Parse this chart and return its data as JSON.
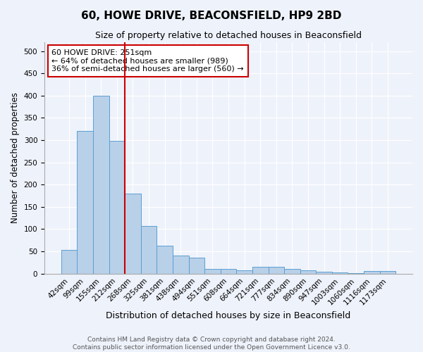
{
  "title": "60, HOWE DRIVE, BEACONSFIELD, HP9 2BD",
  "subtitle": "Size of property relative to detached houses in Beaconsfield",
  "xlabel": "Distribution of detached houses by size in Beaconsfield",
  "ylabel": "Number of detached properties",
  "categories": [
    "42sqm",
    "99sqm",
    "155sqm",
    "212sqm",
    "268sqm",
    "325sqm",
    "381sqm",
    "438sqm",
    "494sqm",
    "551sqm",
    "608sqm",
    "664sqm",
    "721sqm",
    "777sqm",
    "834sqm",
    "890sqm",
    "947sqm",
    "1003sqm",
    "1060sqm",
    "1116sqm",
    "1173sqm"
  ],
  "values": [
    54,
    320,
    400,
    298,
    180,
    107,
    63,
    40,
    36,
    11,
    11,
    8,
    15,
    15,
    10,
    7,
    4,
    3,
    1,
    5,
    6
  ],
  "bar_color": "#b8d0e8",
  "bar_edge_color": "#5a9fd4",
  "red_line_index": 4,
  "red_line_color": "#cc0000",
  "annotation_text": "60 HOWE DRIVE: 251sqm\n← 64% of detached houses are smaller (989)\n36% of semi-detached houses are larger (560) →",
  "annotation_box_color": "#ffffff",
  "annotation_box_edge_color": "#cc0000",
  "ylim": [
    0,
    520
  ],
  "yticks": [
    0,
    50,
    100,
    150,
    200,
    250,
    300,
    350,
    400,
    450,
    500
  ],
  "background_color": "#eef2fb",
  "footer1": "Contains HM Land Registry data © Crown copyright and database right 2024.",
  "footer2": "Contains public sector information licensed under the Open Government Licence v3.0.",
  "title_fontsize": 11,
  "subtitle_fontsize": 9,
  "xlabel_fontsize": 9,
  "ylabel_fontsize": 8.5,
  "annotation_fontsize": 8,
  "footer_fontsize": 6.5,
  "tick_fontsize": 7.5
}
